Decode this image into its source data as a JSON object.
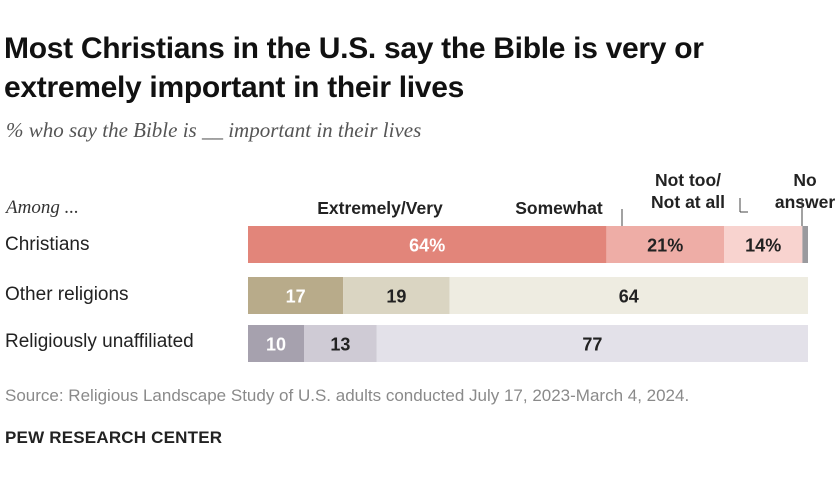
{
  "title": "Most Christians in the U.S. say the Bible is very or extremely important in their lives",
  "subtitle": "% who say the Bible is __ important in their lives",
  "among_label": "Among ...",
  "source": "Source: Religious Landscape Study of U.S. adults conducted July 17, 2023-March 4, 2024.",
  "organization": "PEW RESEARCH CENTER",
  "chart_data": {
    "type": "bar",
    "orientation": "horizontal",
    "stacked": true,
    "categories": [
      "Christians",
      "Other religions",
      "Religiously unaffiliated"
    ],
    "series": [
      {
        "name": "Extremely/Very",
        "values": [
          64,
          17,
          10
        ]
      },
      {
        "name": "Somewhat",
        "values": [
          21,
          19,
          13
        ]
      },
      {
        "name": "Not too/ Not at all",
        "values": [
          14,
          64,
          77
        ]
      },
      {
        "name": "No answer",
        "values": [
          1,
          0,
          0
        ]
      }
    ],
    "value_labels": [
      [
        "64%",
        "21%",
        "14%",
        ""
      ],
      [
        "17",
        "19",
        "64",
        ""
      ],
      [
        "10",
        "13",
        "77",
        ""
      ]
    ],
    "colors": [
      [
        "#e2857a",
        "#eeada6",
        "#f8d3cf",
        "#9a9a9e"
      ],
      [
        "#b8ab8a",
        "#dad5c2",
        "#eeece1",
        "#c8c4b4"
      ],
      [
        "#a6a1ae",
        "#cfcbd5",
        "#e3e1e9",
        "#c5c2cc"
      ]
    ],
    "label_colors": [
      [
        "#ffffff",
        "#222222",
        "#222222",
        ""
      ],
      [
        "#ffffff",
        "#222222",
        "#222222",
        ""
      ],
      [
        "#ffffff",
        "#222222",
        "#222222",
        ""
      ]
    ],
    "xlim": [
      0,
      100
    ],
    "grid": false,
    "legend": "column headers above bars"
  }
}
